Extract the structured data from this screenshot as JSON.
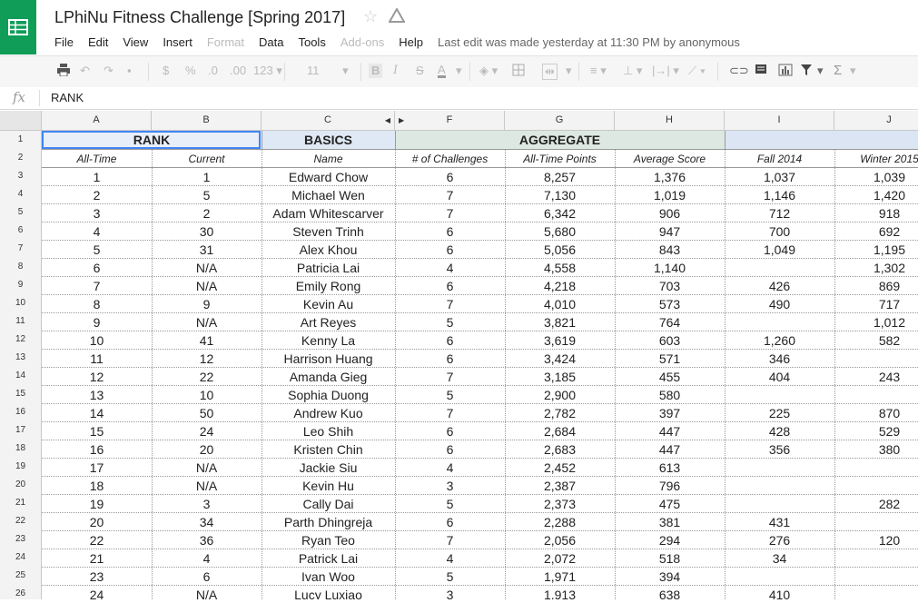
{
  "app": {
    "title": "LPhiNu Fitness Challenge [Spring 2017]",
    "logo_icon": "sheets-logo-icon",
    "accent": "#0f9d58"
  },
  "menu": [
    "File",
    "Edit",
    "View",
    "Insert",
    "Format",
    "Data",
    "Tools",
    "Add-ons",
    "Help"
  ],
  "menu_disabled": [
    "Format",
    "Add-ons"
  ],
  "last_edit": "Last edit was made yesterday at 11:30 PM by anonymous",
  "toolbar": {
    "currency": "$",
    "percent": "%",
    "dec_less": ".0",
    "dec_more": ".00",
    "format": "123",
    "font_size": "11",
    "bold": "B",
    "italic": "I",
    "strike": "S",
    "text_color": "A",
    "sum": "Σ"
  },
  "formula": {
    "fx": "fx",
    "value": "RANK"
  },
  "columns": [
    "A",
    "B",
    "C",
    "F",
    "G",
    "H",
    "I",
    "J"
  ],
  "row_numbers": [
    "1",
    "2",
    "3",
    "4",
    "5",
    "6",
    "7",
    "8",
    "9",
    "10",
    "11",
    "12",
    "13",
    "14",
    "15",
    "16",
    "17",
    "18",
    "19",
    "20",
    "21",
    "22",
    "23",
    "24",
    "25",
    "26"
  ],
  "group_headers": {
    "rank": "RANK",
    "basics": "BASICS",
    "aggregate": "AGGREGATE"
  },
  "subheaders": [
    "All-Time",
    "Current",
    "Name",
    "# of Challenges",
    "All-Time Points",
    "Average Score",
    "Fall 2014",
    "Winter 2015"
  ],
  "rows": [
    [
      "1",
      "1",
      "Edward Chow",
      "6",
      "8,257",
      "1,376",
      "1,037",
      "1,039"
    ],
    [
      "2",
      "5",
      "Michael Wen",
      "7",
      "7,130",
      "1,019",
      "1,146",
      "1,420"
    ],
    [
      "3",
      "2",
      "Adam Whitescarver",
      "7",
      "6,342",
      "906",
      "712",
      "918"
    ],
    [
      "4",
      "30",
      "Steven Trinh",
      "6",
      "5,680",
      "947",
      "700",
      "692"
    ],
    [
      "5",
      "31",
      "Alex Khou",
      "6",
      "5,056",
      "843",
      "1,049",
      "1,195"
    ],
    [
      "6",
      "N/A",
      "Patricia Lai",
      "4",
      "4,558",
      "1,140",
      "",
      "1,302"
    ],
    [
      "7",
      "N/A",
      "Emily Rong",
      "6",
      "4,218",
      "703",
      "426",
      "869"
    ],
    [
      "8",
      "9",
      "Kevin Au",
      "7",
      "4,010",
      "573",
      "490",
      "717"
    ],
    [
      "9",
      "N/A",
      "Art Reyes",
      "5",
      "3,821",
      "764",
      "",
      "1,012"
    ],
    [
      "10",
      "41",
      "Kenny La",
      "6",
      "3,619",
      "603",
      "1,260",
      "582"
    ],
    [
      "11",
      "12",
      "Harrison Huang",
      "6",
      "3,424",
      "571",
      "346",
      ""
    ],
    [
      "12",
      "22",
      "Amanda Gieg",
      "7",
      "3,185",
      "455",
      "404",
      "243"
    ],
    [
      "13",
      "10",
      "Sophia Duong",
      "5",
      "2,900",
      "580",
      "",
      ""
    ],
    [
      "14",
      "50",
      "Andrew Kuo",
      "7",
      "2,782",
      "397",
      "225",
      "870"
    ],
    [
      "15",
      "24",
      "Leo Shih",
      "6",
      "2,684",
      "447",
      "428",
      "529"
    ],
    [
      "16",
      "20",
      "Kristen Chin",
      "6",
      "2,683",
      "447",
      "356",
      "380"
    ],
    [
      "17",
      "N/A",
      "Jackie Siu",
      "4",
      "2,452",
      "613",
      "",
      ""
    ],
    [
      "18",
      "N/A",
      "Kevin Hu",
      "3",
      "2,387",
      "796",
      "",
      ""
    ],
    [
      "19",
      "3",
      "Cally Dai",
      "5",
      "2,373",
      "475",
      "",
      "282"
    ],
    [
      "20",
      "34",
      "Parth Dhingreja",
      "6",
      "2,288",
      "381",
      "431",
      ""
    ],
    [
      "22",
      "36",
      "Ryan Teo",
      "7",
      "2,056",
      "294",
      "276",
      "120"
    ],
    [
      "21",
      "4",
      "Patrick Lai",
      "4",
      "2,072",
      "518",
      "34",
      ""
    ],
    [
      "23",
      "6",
      "Ivan Woo",
      "5",
      "1,971",
      "394",
      "",
      ""
    ],
    [
      "24",
      "N/A",
      "Lucy Luxiao",
      "3",
      "1,913",
      "638",
      "410",
      ""
    ]
  ]
}
